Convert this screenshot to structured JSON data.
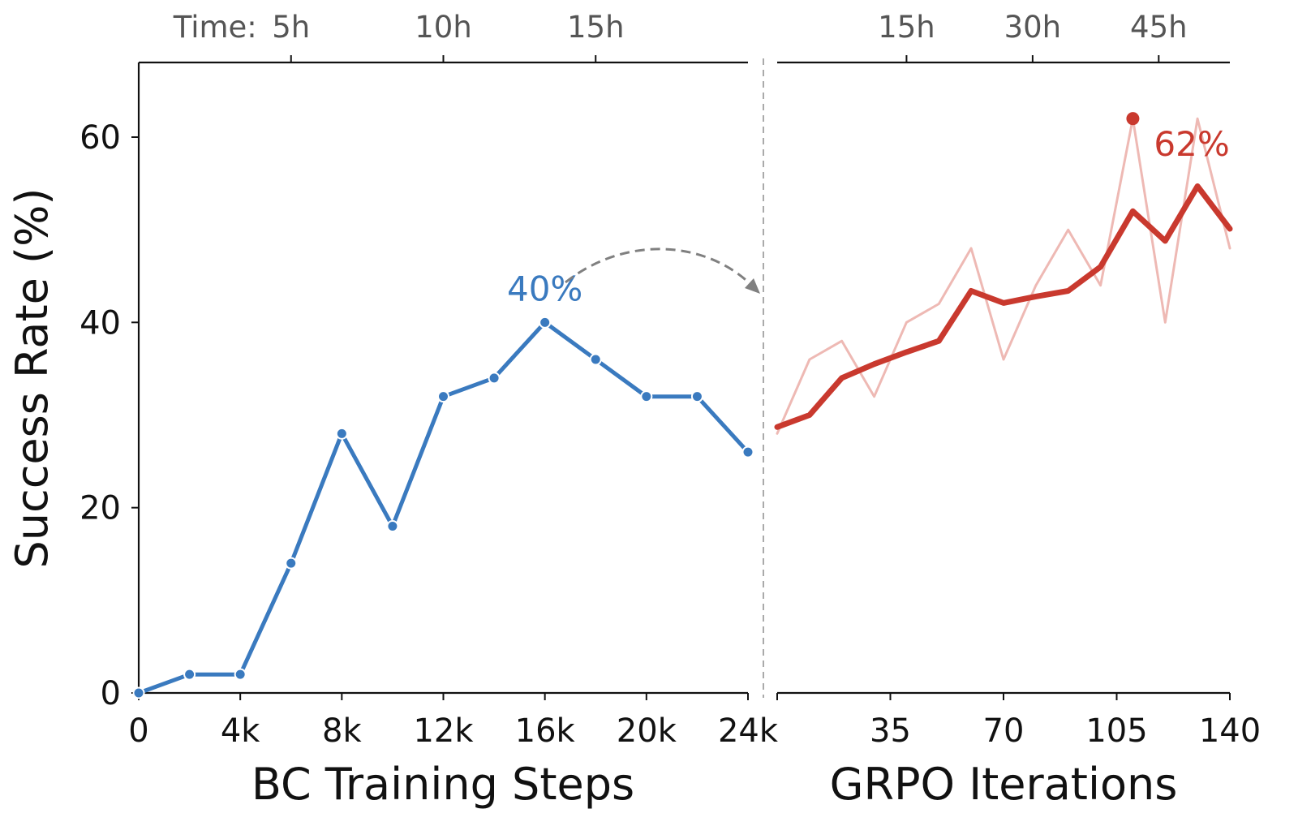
{
  "chart_data": [
    {
      "type": "line",
      "panel": "left",
      "xlabel": "BC Training Steps",
      "ylabel": "Success Rate (%)",
      "xlim": [
        0,
        24000
      ],
      "ylim": [
        0,
        60
      ],
      "x_ticks": [
        {
          "value": 0,
          "label": "0"
        },
        {
          "value": 4000,
          "label": "4k"
        },
        {
          "value": 8000,
          "label": "8k"
        },
        {
          "value": 12000,
          "label": "12k"
        },
        {
          "value": 16000,
          "label": "16k"
        },
        {
          "value": 20000,
          "label": "20k"
        },
        {
          "value": 24000,
          "label": "24k"
        }
      ],
      "y_ticks": [
        {
          "value": 0,
          "label": "0"
        },
        {
          "value": 20,
          "label": "20"
        },
        {
          "value": 40,
          "label": "40"
        },
        {
          "value": 60,
          "label": "60"
        }
      ],
      "top_axis": {
        "prefix": "Time:",
        "ticks": [
          {
            "value": 6000,
            "label": "5h"
          },
          {
            "value": 12000,
            "label": "10h"
          },
          {
            "value": 18000,
            "label": "15h"
          }
        ]
      },
      "series": [
        {
          "color": "#3a7abf",
          "x": [
            0,
            2000,
            4000,
            6000,
            8000,
            10000,
            12000,
            14000,
            16000,
            18000,
            20000,
            22000,
            24000
          ],
          "y": [
            0,
            2,
            2,
            14,
            28,
            18,
            32,
            34,
            40,
            36,
            32,
            32,
            26
          ]
        }
      ],
      "annotations": [
        {
          "text": "40%",
          "x": 16000,
          "y": 40,
          "color": "#3a7abf"
        }
      ]
    },
    {
      "type": "line",
      "panel": "right",
      "xlabel": "GRPO Iterations",
      "xlim": [
        0,
        140
      ],
      "ylim": [
        0,
        60
      ],
      "x_ticks": [
        {
          "value": 0,
          "label": ""
        },
        {
          "value": 35,
          "label": "35"
        },
        {
          "value": 70,
          "label": "70"
        },
        {
          "value": 105,
          "label": "105"
        },
        {
          "value": 140,
          "label": "140"
        }
      ],
      "top_axis": {
        "ticks": [
          {
            "value": 40,
            "label": "15h"
          },
          {
            "value": 79,
            "label": "30h"
          },
          {
            "value": 118,
            "label": "45h"
          }
        ]
      },
      "series": [
        {
          "role": "raw",
          "color": "#eeb9b4",
          "x": [
            0,
            10,
            20,
            30,
            40,
            50,
            60,
            70,
            80,
            90,
            100,
            110,
            120,
            130,
            140
          ],
          "y": [
            28,
            36,
            38,
            32,
            40,
            42,
            48,
            36,
            44,
            50,
            44,
            62,
            40,
            62,
            48
          ]
        },
        {
          "role": "smoothed",
          "color": "#c9392e",
          "x": [
            0,
            10,
            20,
            30,
            40,
            50,
            60,
            70,
            80,
            90,
            100,
            110,
            120,
            130,
            140
          ],
          "y": [
            28.7,
            30,
            34,
            35.5,
            36.8,
            38,
            43.4,
            42.1,
            42.8,
            43.4,
            46,
            52,
            48.8,
            54.7,
            50.1
          ]
        }
      ],
      "annotations": [
        {
          "text": "62%",
          "x": 110,
          "y": 62,
          "color": "#c9392e"
        }
      ]
    }
  ]
}
